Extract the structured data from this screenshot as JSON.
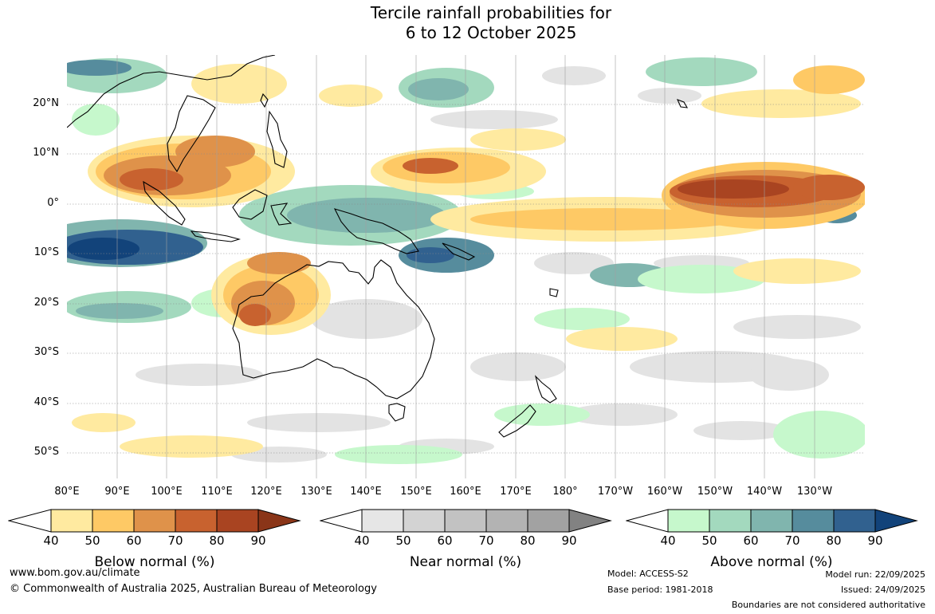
{
  "title": {
    "line1": "Tercile rainfall probabilities for",
    "line2": "6 to 12 October 2025"
  },
  "map": {
    "lat_labels": [
      "20°N",
      "10°N",
      "0°",
      "10°S",
      "20°S",
      "30°S",
      "40°S",
      "50°S"
    ],
    "lon_labels": [
      "80°E",
      "90°E",
      "100°E",
      "110°E",
      "120°E",
      "130°E",
      "140°E",
      "150°E",
      "160°E",
      "170°E",
      "180°",
      "170°W",
      "160°W",
      "150°W",
      "140°W",
      "130°W"
    ],
    "extent": {
      "lon_min": 80,
      "lon_max": 240,
      "lat_min": -55,
      "lat_max": 30
    }
  },
  "legend": [
    {
      "name": "below",
      "title": "Below normal (%)",
      "ticks": [
        "40",
        "50",
        "60",
        "70",
        "80",
        "90"
      ],
      "colors": [
        "#ffeaa0",
        "#fec965",
        "#df924a",
        "#c8622f",
        "#a94421",
        "#8a3518"
      ]
    },
    {
      "name": "near",
      "title": "Near normal (%)",
      "ticks": [
        "40",
        "50",
        "60",
        "70",
        "80",
        "90"
      ],
      "colors": [
        "#e6e6e6",
        "#d3d3d3",
        "#c2c2c2",
        "#b3b3b3",
        "#a2a2a2",
        "#828282"
      ]
    },
    {
      "name": "above",
      "title": "Above normal (%)",
      "ticks": [
        "40",
        "50",
        "60",
        "70",
        "80",
        "90"
      ],
      "colors": [
        "#c6f8cc",
        "#a3d9be",
        "#80b5ae",
        "#568c9d",
        "#31618f",
        "#12437a"
      ]
    }
  ],
  "footer": {
    "website": "www.bom.gov.au/climate",
    "copyright": "© Commonwealth of Australia 2025, Australian Bureau of Meteorology",
    "model": "Model: ACCESS-S2",
    "base_period": "Base period: 1981-2018",
    "model_run": "Model run: 22/09/2025",
    "issued": "Issued: 24/09/2025",
    "disclaimer": "Boundaries are not considered authoritative"
  }
}
